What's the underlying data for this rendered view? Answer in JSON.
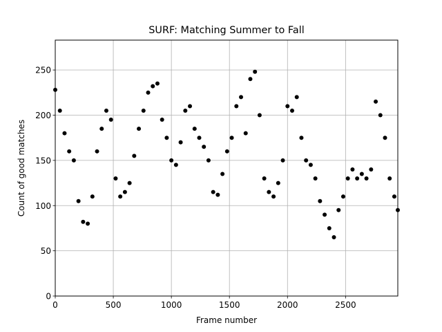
{
  "chart_data": {
    "type": "scatter",
    "title": "SURF: Matching Summer to Fall",
    "xlabel": "Frame number",
    "ylabel": "Count of good matches",
    "xlim": [
      0,
      2950
    ],
    "ylim": [
      0,
      283
    ],
    "xticks": [
      0,
      500,
      1000,
      1500,
      2000,
      2500
    ],
    "xtick_labels": [
      "0",
      "500",
      "1000",
      "1500",
      "2000",
      "2500"
    ],
    "yticks": [
      0,
      50,
      100,
      150,
      200,
      250
    ],
    "ytick_labels": [
      "0",
      "50",
      "100",
      "150",
      "200",
      "250"
    ],
    "grid": true,
    "marker_color": "#000000",
    "series": [
      {
        "x": [
          0,
          40,
          80,
          120,
          160,
          200,
          240,
          280,
          320,
          360,
          400,
          440,
          480,
          520,
          560,
          600,
          640,
          680,
          720,
          760,
          800,
          840,
          880,
          920,
          960,
          1000,
          1040,
          1080,
          1120,
          1160,
          1200,
          1240,
          1280,
          1320,
          1360,
          1400,
          1440,
          1480,
          1520,
          1560,
          1600,
          1640,
          1680,
          1720,
          1760,
          1800,
          1840,
          1880,
          1920,
          1960,
          2000,
          2040,
          2080,
          2120,
          2160,
          2200,
          2240,
          2280,
          2320,
          2360,
          2400,
          2440,
          2480,
          2520,
          2560,
          2600,
          2640,
          2680,
          2720,
          2760,
          2800,
          2840,
          2880,
          2920,
          2950
        ],
        "y": [
          228,
          205,
          180,
          160,
          150,
          105,
          82,
          80,
          110,
          160,
          185,
          205,
          195,
          130,
          110,
          115,
          125,
          155,
          185,
          205,
          225,
          232,
          235,
          195,
          175,
          150,
          145,
          170,
          205,
          210,
          185,
          175,
          165,
          150,
          115,
          112,
          135,
          160,
          175,
          210,
          220,
          180,
          240,
          248,
          200,
          130,
          115,
          110,
          125,
          150,
          210,
          205,
          220,
          175,
          150,
          145,
          130,
          105,
          90,
          75,
          65,
          95,
          110,
          130,
          140,
          130,
          135,
          130,
          140,
          215,
          200,
          175,
          130,
          110,
          95
        ]
      }
    ]
  }
}
